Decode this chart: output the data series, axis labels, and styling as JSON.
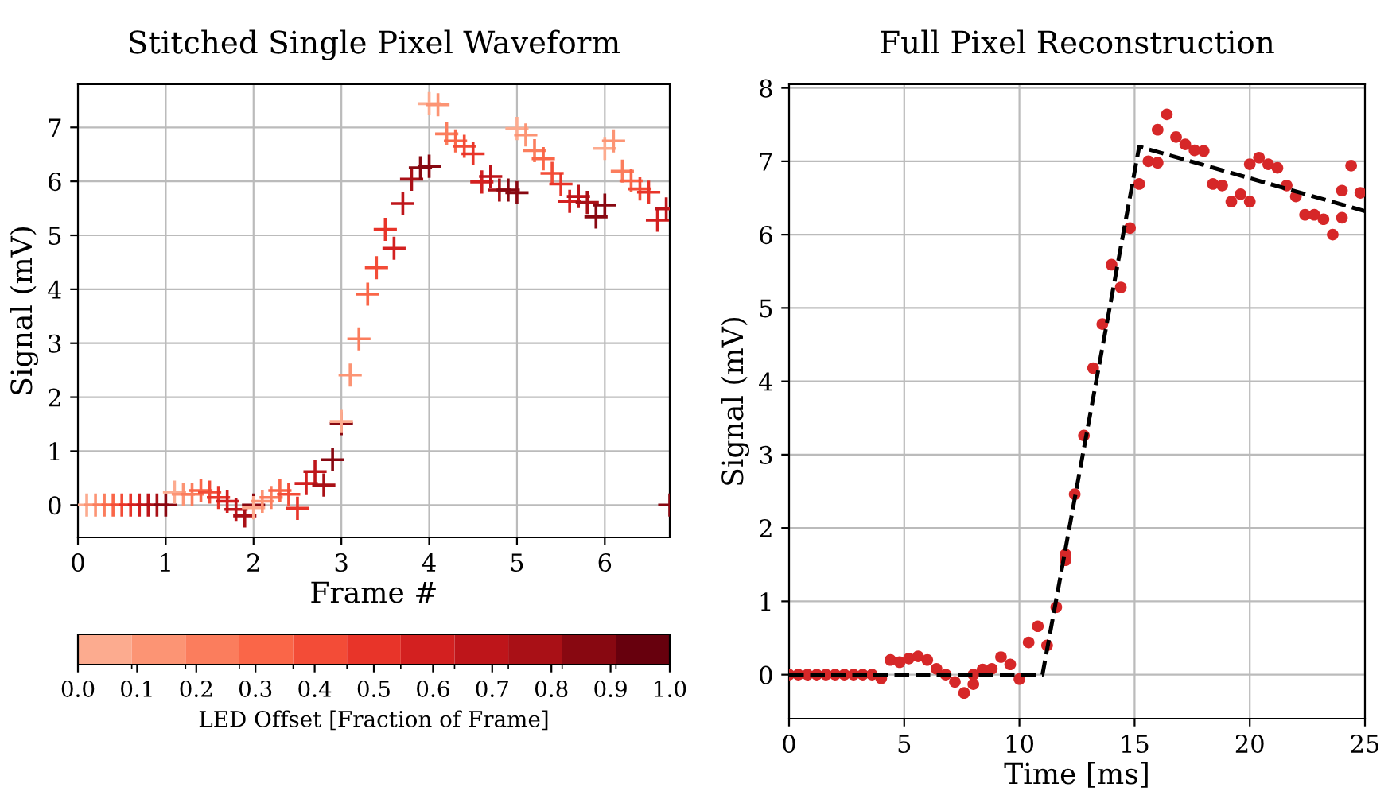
{
  "chart_data": [
    {
      "type": "scatter",
      "title": "Stitched Single Pixel Waveform",
      "xlabel": "Frame #",
      "ylabel": "Signal (mV)",
      "clabel": "LED Offset [Fraction of Frame]",
      "xlim": [
        0,
        6.74
      ],
      "ylim": [
        -0.6,
        7.8
      ],
      "xticks": [
        0,
        1,
        2,
        3,
        4,
        5,
        6
      ],
      "yticks": [
        0,
        1,
        2,
        3,
        4,
        5,
        6,
        7
      ],
      "clim": [
        0,
        1
      ],
      "cticks": [
        {
          "value": 0,
          "label": "0.0"
        },
        {
          "value": 0.1,
          "label": "0.1"
        },
        {
          "value": 0.2,
          "label": "0.2"
        },
        {
          "value": 0.3,
          "label": "0.3"
        },
        {
          "value": 0.4,
          "label": "0.4"
        },
        {
          "value": 0.5,
          "label": "0.5"
        },
        {
          "value": 0.6,
          "label": "0.6"
        },
        {
          "value": 0.7,
          "label": "0.7"
        },
        {
          "value": 0.8,
          "label": "0.8"
        },
        {
          "value": 0.9,
          "label": "0.9"
        },
        {
          "value": 1,
          "label": "1.0"
        }
      ],
      "grid": true,
      "marker": "cross",
      "series": [
        {
          "x": [
            0.1,
            0.2,
            0.3,
            0.4,
            0.5,
            0.6,
            0.7,
            0.8,
            0.9,
            1.0,
            1.1,
            1.2,
            1.3,
            1.4,
            1.5,
            1.6,
            1.7,
            1.8,
            1.9,
            2.0,
            2.0,
            2.1,
            2.2,
            2.3,
            2.4,
            2.5,
            2.6,
            2.7,
            2.8,
            2.9,
            3.0,
            3.0,
            3.1,
            3.2,
            3.3,
            3.4,
            3.5,
            3.6,
            3.7,
            3.8,
            3.9,
            4.0,
            4.0,
            4.1,
            4.2,
            4.3,
            4.4,
            4.5,
            4.6,
            4.7,
            4.8,
            4.9,
            5.0,
            5.0,
            5.1,
            5.2,
            5.3,
            5.4,
            5.5,
            5.6,
            5.7,
            5.8,
            5.9,
            6.0,
            6.0,
            6.1,
            6.2,
            6.3,
            6.4,
            6.5,
            6.6,
            6.7,
            6.74
          ],
          "values": [
            0,
            0,
            0,
            0,
            0,
            0,
            0,
            0,
            0,
            0,
            0.24,
            0.2,
            0.2,
            0.27,
            0.24,
            0.14,
            0.07,
            -0.08,
            -0.2,
            0,
            -0.05,
            0.07,
            0.14,
            0.27,
            0.2,
            -0.06,
            0.4,
            0.62,
            0.37,
            0.84,
            1.51,
            1.55,
            2.41,
            3.08,
            3.91,
            4.4,
            5.11,
            4.76,
            5.59,
            6.04,
            6.25,
            6.28,
            7.44,
            7.42,
            6.88,
            6.75,
            6.65,
            6.51,
            5.99,
            6.09,
            5.84,
            5.84,
            5.79,
            6.98,
            6.86,
            6.57,
            6.42,
            6.15,
            5.95,
            5.63,
            5.72,
            5.61,
            5.34,
            5.56,
            6.61,
            6.75,
            6.19,
            6.01,
            5.86,
            5.8,
            5.28,
            5.49,
            0
          ],
          "cvalues": [
            0,
            0.1,
            0.2,
            0.3,
            0.4,
            0.5,
            0.6,
            0.7,
            0.8,
            0.9,
            0,
            0.1,
            0.2,
            0.3,
            0.4,
            0.5,
            0.6,
            0.7,
            0.8,
            0.9,
            0,
            0.1,
            0.2,
            0.3,
            0.4,
            0.5,
            0.6,
            0.7,
            0.8,
            0.9,
            0.9,
            0,
            0.1,
            0.2,
            0.3,
            0.4,
            0.5,
            0.6,
            0.7,
            0.8,
            0.9,
            0.9,
            0,
            0.1,
            0.2,
            0.3,
            0.4,
            0.5,
            0.6,
            0.7,
            0.8,
            0.9,
            0.9,
            0,
            0.1,
            0.2,
            0.3,
            0.4,
            0.5,
            0.6,
            0.7,
            0.8,
            0.9,
            0.9,
            0,
            0.1,
            0.2,
            0.3,
            0.4,
            0.5,
            0.6,
            0.7,
            0.9
          ]
        }
      ]
    },
    {
      "type": "scatter",
      "title": "Full Pixel Reconstruction",
      "xlabel": "Time [ms]",
      "ylabel": "Signal (mV)",
      "xlim": [
        0,
        25
      ],
      "ylim": [
        -0.6,
        8.05
      ],
      "xticks": [
        0,
        5,
        10,
        15,
        20,
        25
      ],
      "yticks": [
        0,
        1,
        2,
        3,
        4,
        5,
        6,
        7,
        8
      ],
      "grid": true,
      "series": [
        {
          "type": "scatter",
          "marker": "circle",
          "color": "#d62728",
          "x": [
            0,
            0.4,
            0.8,
            1.2,
            1.6,
            2.0,
            2.4,
            2.8,
            3.2,
            3.6,
            4.0,
            4.4,
            4.8,
            5.2,
            5.6,
            6.0,
            6.4,
            6.8,
            7.2,
            7.6,
            8.0,
            8.0,
            8.4,
            8.8,
            9.2,
            9.6,
            10.0,
            10.4,
            10.8,
            11.2,
            11.6,
            12.0,
            12.0,
            12.4,
            12.8,
            13.2,
            13.6,
            14.0,
            14.4,
            14.8,
            15.2,
            15.6,
            16.0,
            16.0,
            16.4,
            16.8,
            17.2,
            17.6,
            18.0,
            18.4,
            18.8,
            19.2,
            19.6,
            20.0,
            20.0,
            20.4,
            20.8,
            21.2,
            21.6,
            22.0,
            22.4,
            22.8,
            23.2,
            23.6,
            24.0,
            24.0,
            24.4,
            24.8
          ],
          "values": [
            0,
            0,
            0,
            0,
            0,
            0,
            0,
            0,
            0,
            0,
            -0.05,
            0.2,
            0.17,
            0.22,
            0.25,
            0.2,
            0.08,
            0,
            -0.1,
            -0.25,
            -0.13,
            0,
            0.07,
            0.08,
            0.24,
            0.14,
            -0.06,
            0.44,
            0.66,
            0.4,
            0.92,
            1.56,
            1.64,
            2.46,
            3.26,
            4.18,
            4.78,
            5.59,
            5.28,
            6.09,
            6.69,
            7.0,
            7.43,
            6.98,
            7.64,
            7.33,
            7.23,
            7.15,
            7.14,
            6.69,
            6.67,
            6.45,
            6.55,
            6.96,
            6.45,
            7.05,
            6.96,
            6.91,
            6.67,
            6.52,
            6.27,
            6.27,
            6.21,
            6.0,
            6.23,
            6.6,
            6.94,
            6.57
          ]
        },
        {
          "type": "line",
          "line_style": "dashed",
          "marker": "none",
          "color": "#000000",
          "x": [
            0,
            11,
            15.2,
            25
          ],
          "values": [
            0,
            0,
            7.2,
            6.32
          ]
        }
      ]
    }
  ]
}
